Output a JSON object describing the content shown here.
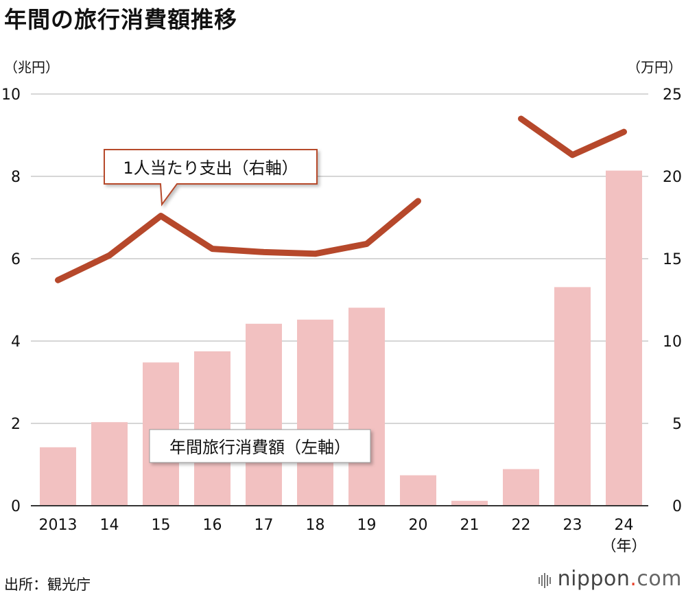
{
  "title": "年間の旅行消費額推移",
  "left_unit": "（兆円）",
  "right_unit": "（万円）",
  "source": "出所：観光庁",
  "logo": {
    "brand": "nippon",
    "dot": ".",
    "suffix": "com"
  },
  "colors": {
    "bar": "#f2c1c1",
    "line": "#b6482b",
    "grid": "#c8c8c8",
    "axis": "#333333"
  },
  "chart_data": {
    "type": "bar",
    "categories": [
      "2013",
      "14",
      "15",
      "16",
      "17",
      "18",
      "19",
      "20",
      "21",
      "22",
      "23",
      "24"
    ],
    "x_unit": "（年）",
    "series": [
      {
        "name": "年間旅行消費額（左軸）",
        "type": "bar",
        "axis": "left",
        "values": [
          1.42,
          2.03,
          3.48,
          3.75,
          4.42,
          4.52,
          4.81,
          0.74,
          0.12,
          0.89,
          5.31,
          8.14
        ]
      },
      {
        "name": "1人当たり支出（右軸）",
        "type": "line",
        "axis": "right",
        "values": [
          13.7,
          15.2,
          17.6,
          15.6,
          15.4,
          15.3,
          15.9,
          18.5,
          null,
          23.5,
          21.3,
          22.7
        ]
      }
    ],
    "yaxis_left": {
      "range": [
        0,
        10
      ],
      "ticks": [
        "0",
        "2",
        "4",
        "6",
        "8",
        "10"
      ]
    },
    "yaxis_right": {
      "range": [
        0,
        25
      ],
      "ticks": [
        "0",
        "5",
        "10",
        "15",
        "20",
        "25"
      ]
    },
    "grid": true
  }
}
